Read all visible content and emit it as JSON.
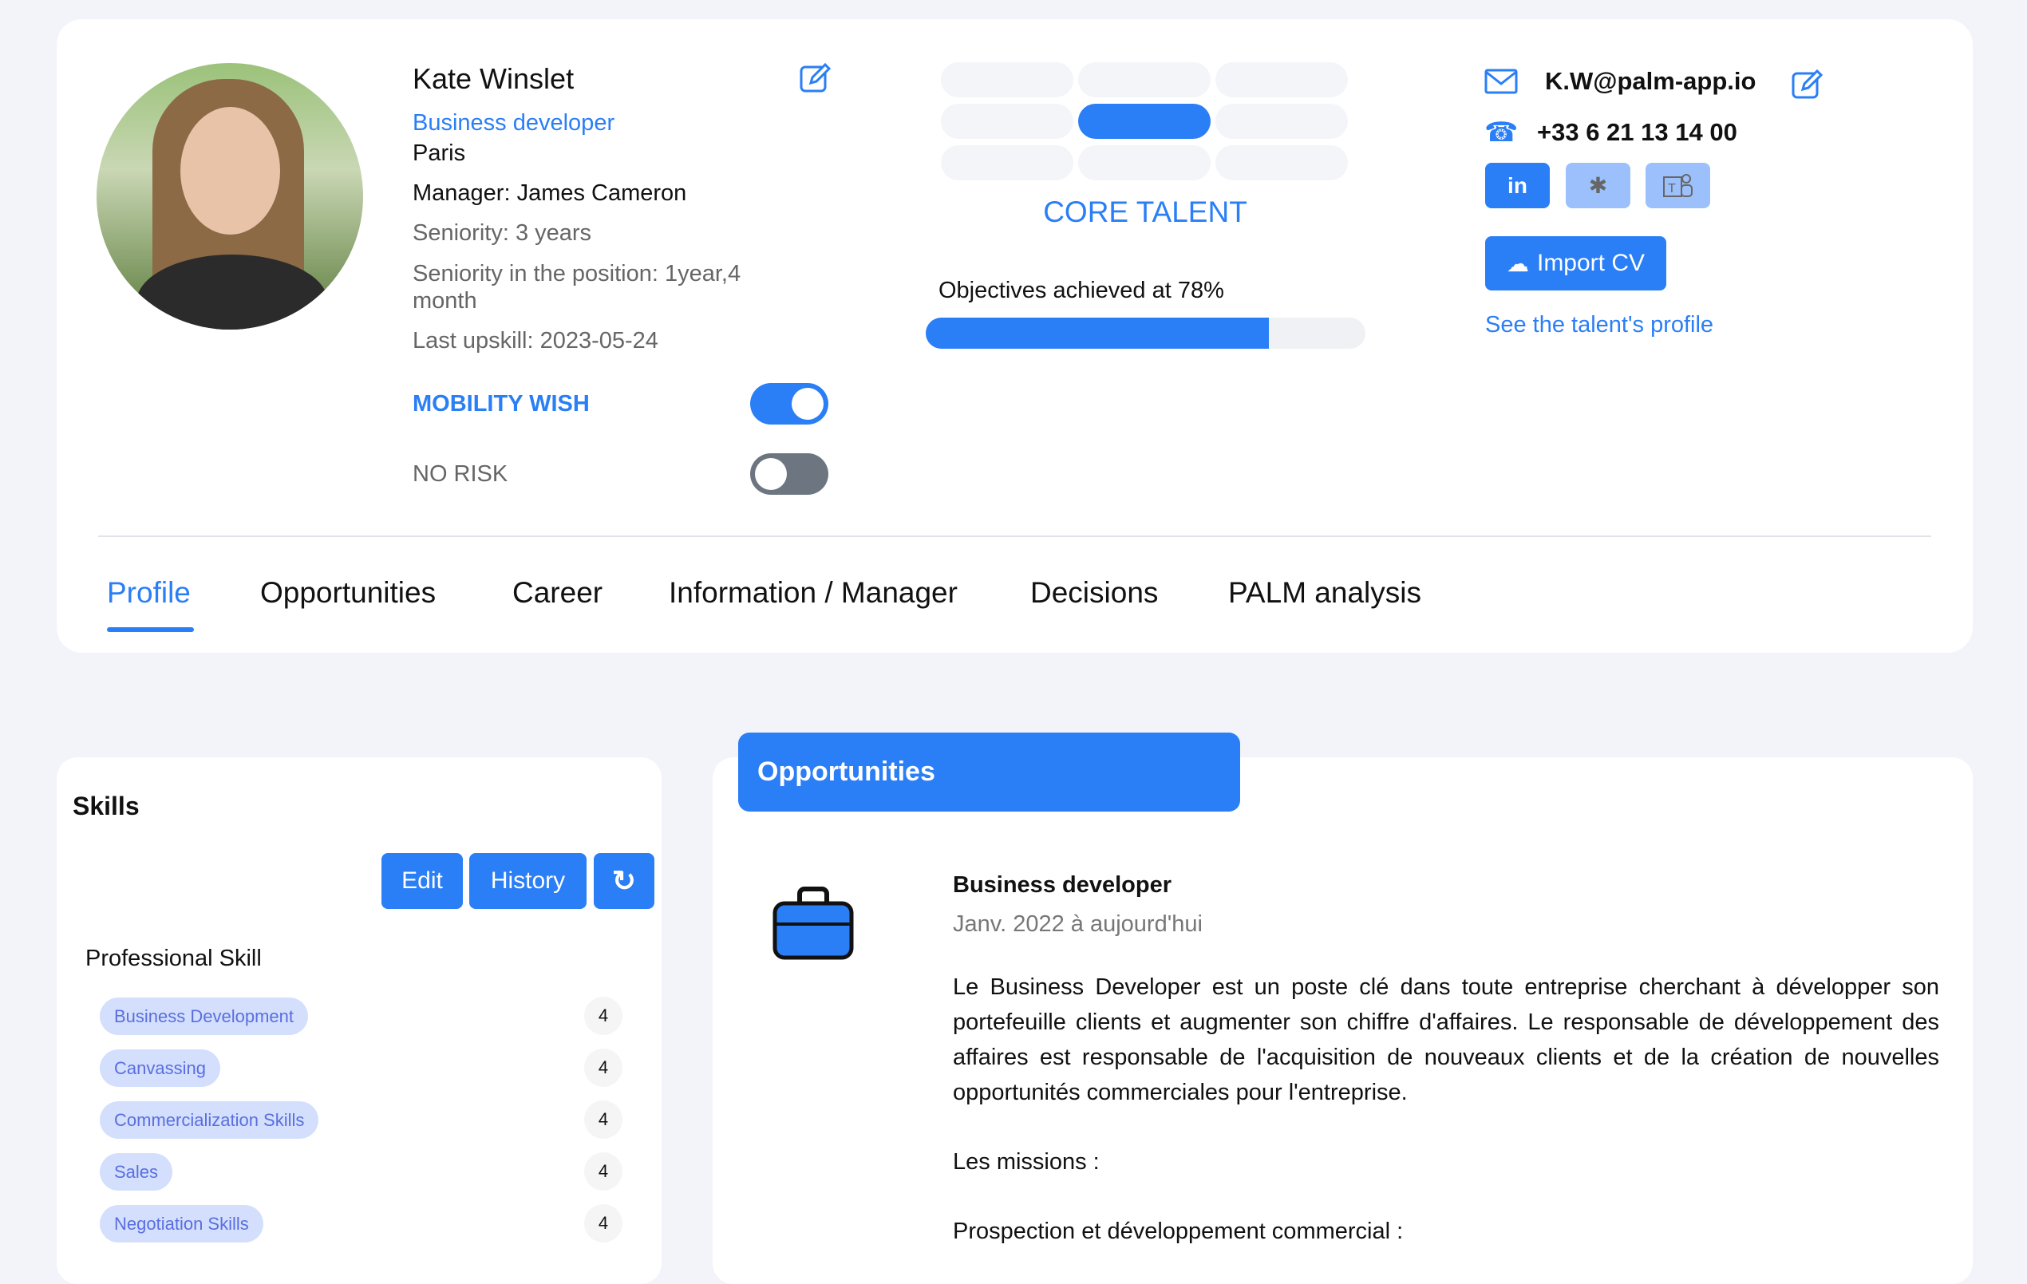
{
  "profile": {
    "name": "Kate Winslet",
    "role": "Business developer",
    "city": "Paris",
    "manager": "Manager: James Cameron",
    "seniority": "Seniority: 3 years",
    "seniority_position": "Seniority in the position: 1year,4 month",
    "last_upskill": "Last upskill: 2023-05-24",
    "mobility_label": "MOBILITY WISH",
    "mobility_on": true,
    "risk_label": "NO RISK",
    "risk_on": false
  },
  "talent": {
    "category": "CORE TALENT",
    "selected_cell": "middle-center",
    "objectives_text": "Objectives achieved at 78%",
    "objectives_percent": 78
  },
  "contact": {
    "email": "K.W@palm-app.io",
    "phone": "+33 6 21 13 14 00",
    "linkedin": "in",
    "import_cv": "Import CV",
    "see_profile": "See the talent's profile"
  },
  "tabs": [
    {
      "label": "Profile",
      "active": true
    },
    {
      "label": "Opportunities"
    },
    {
      "label": "Career"
    },
    {
      "label": "Information / Manager"
    },
    {
      "label": "Decisions"
    },
    {
      "label": "PALM analysis"
    }
  ],
  "skills": {
    "title": "Skills",
    "edit": "Edit",
    "history": "History",
    "section": "Professional Skill",
    "items": [
      {
        "name": "Business Development",
        "level": "4"
      },
      {
        "name": "Canvassing",
        "level": "4"
      },
      {
        "name": "Commercialization Skills",
        "level": "4"
      },
      {
        "name": "Sales",
        "level": "4"
      },
      {
        "name": "Negotiation Skills",
        "level": "4"
      }
    ]
  },
  "opportunities": {
    "header": "Opportunities",
    "job_title": "Business developer",
    "period": "Janv. 2022 à aujourd'hui",
    "description": "Le Business Developer est un poste clé dans toute entreprise cherchant à développer son portefeuille clients et augmenter son chiffre d'affaires. Le responsable de développement des affaires est responsable de l'acquisition de nouveaux clients et de la création de nouvelles opportunités commerciales pour l'entreprise.",
    "missions": "Les missions :",
    "prospection": "Prospection et développement commercial :"
  },
  "colors": {
    "accent": "#2a7ef6",
    "background": "#f3f4fa",
    "chip": "#d3dffc",
    "toggle_off": "#6c7580"
  }
}
